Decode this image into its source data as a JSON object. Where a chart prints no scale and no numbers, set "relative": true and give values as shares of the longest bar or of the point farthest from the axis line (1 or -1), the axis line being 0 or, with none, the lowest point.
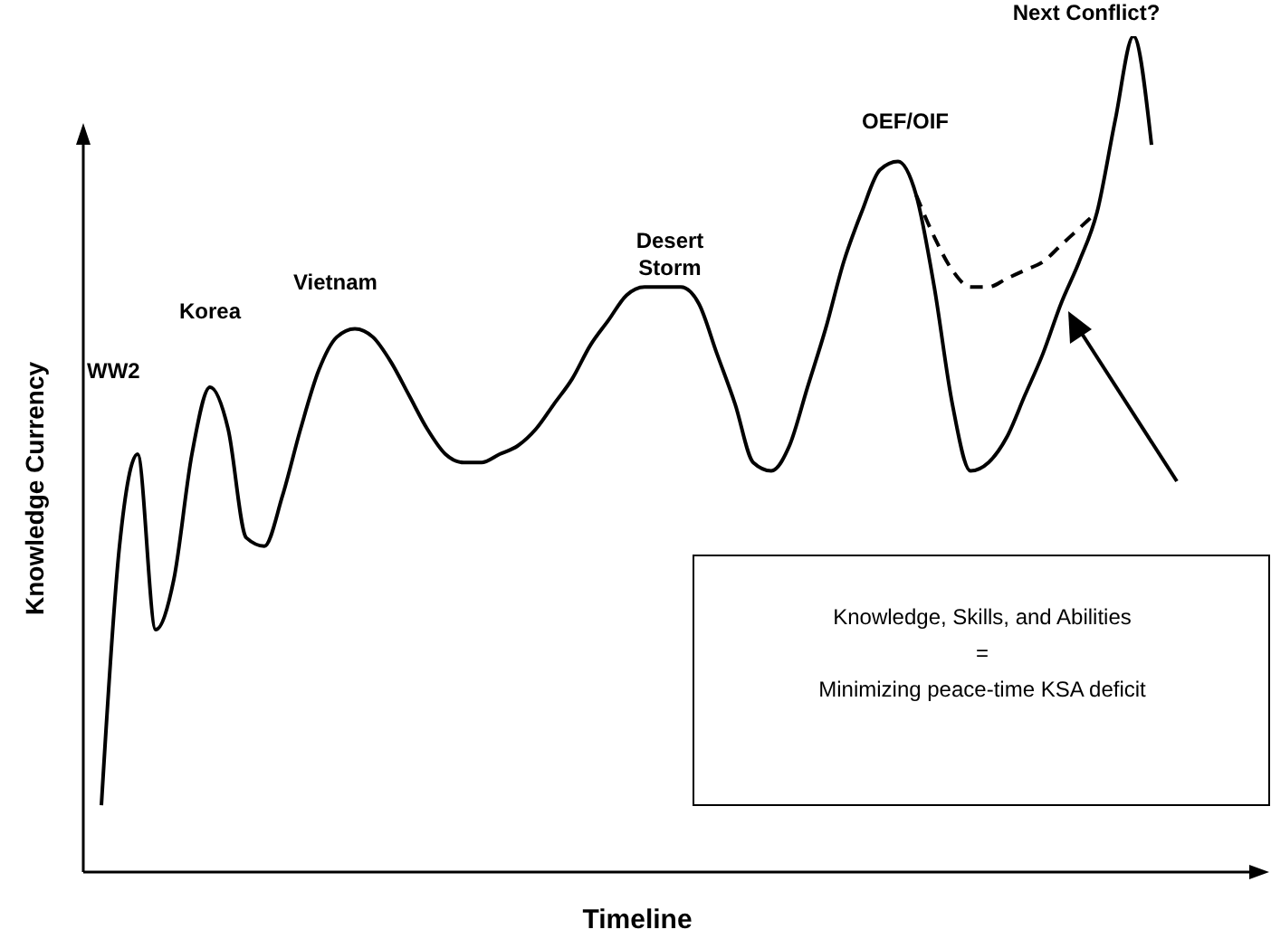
{
  "chart_data": {
    "type": "line",
    "xlabel": "Timeline",
    "ylabel": "Knowledge Currency",
    "relative": true,
    "tick_labels": false,
    "marker": "none",
    "categories": [
      null,
      null,
      null,
      null,
      null,
      null,
      null,
      null,
      null,
      null,
      null,
      null,
      null,
      null,
      null,
      null,
      null,
      null,
      null,
      null,
      null,
      null,
      null,
      null,
      null,
      null,
      null,
      null,
      null,
      null,
      null,
      null,
      null,
      null,
      null,
      null,
      null,
      null,
      null,
      null,
      null,
      null,
      null,
      null,
      null,
      null,
      null,
      null,
      null,
      null,
      null,
      null,
      null,
      null,
      null,
      null,
      null,
      null,
      null
    ],
    "series": [
      {
        "color": "#000000",
        "line_style": "solid",
        "values": [
          0.08,
          0.39,
          0.5,
          0.29,
          0.35,
          0.5,
          0.58,
          0.53,
          0.4,
          0.39,
          0.45,
          0.53,
          0.6,
          0.64,
          0.65,
          0.64,
          0.61,
          0.57,
          0.53,
          0.5,
          0.49,
          0.49,
          0.5,
          0.51,
          0.53,
          0.56,
          0.59,
          0.63,
          0.66,
          0.69,
          0.7,
          0.7,
          0.7,
          0.68,
          0.62,
          0.56,
          0.49,
          0.48,
          0.51,
          0.58,
          0.65,
          0.73,
          0.79,
          0.84,
          0.85,
          0.81,
          0.7,
          0.56,
          0.48,
          0.49,
          0.52,
          0.57,
          0.62,
          0.68,
          0.73,
          0.79,
          0.9,
          1,
          0.87
        ]
      },
      {
        "color": "#000000",
        "line_style": "dashed",
        "values": [
          null,
          null,
          null,
          null,
          null,
          null,
          null,
          null,
          null,
          null,
          null,
          null,
          null,
          null,
          null,
          null,
          null,
          null,
          null,
          null,
          null,
          null,
          null,
          null,
          null,
          null,
          null,
          null,
          null,
          null,
          null,
          null,
          null,
          null,
          null,
          null,
          null,
          null,
          null,
          null,
          null,
          null,
          null,
          null,
          null,
          0.81,
          0.76,
          0.72,
          0.7,
          0.7,
          0.71,
          0.72,
          0.73,
          0.75,
          0.77,
          0.79,
          null,
          null,
          null
        ]
      }
    ],
    "annotations": [
      "WW2",
      "Korea",
      "Vietnam",
      "Desert Storm",
      "OEF/OIF",
      "Next Conflict?",
      "Knowledge, Skills, and Abilities",
      "=",
      "Minimizing peace-time KSA deficit"
    ]
  }
}
